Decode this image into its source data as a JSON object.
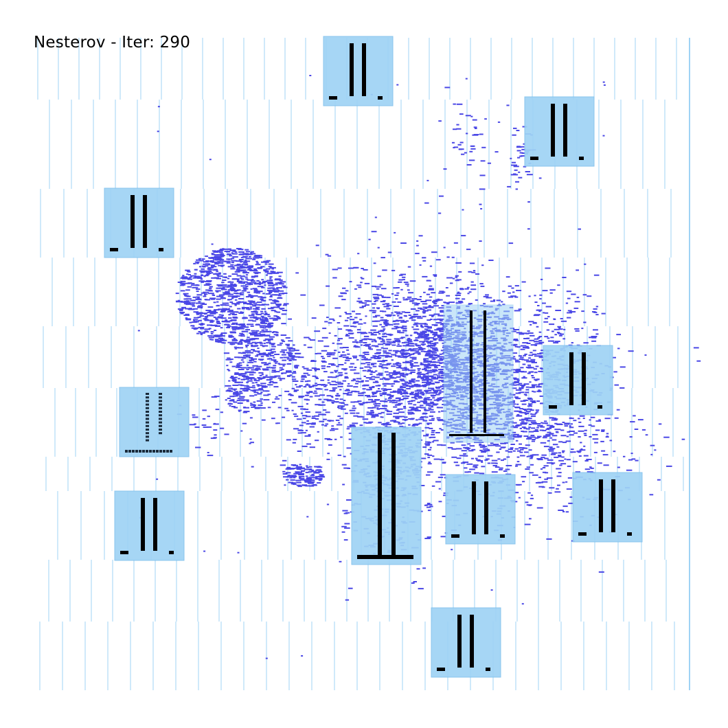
{
  "title": "Nesterov - Iter: 290",
  "colors": {
    "background": "#ffffff",
    "gridline": "#9fd3f5",
    "macro_fill": "#9fd3f5",
    "macro_edge": "#7fc0ec",
    "cell": "#4a47e6",
    "pin": "#000000"
  },
  "macros": [
    {
      "id": "macro-1",
      "style": "standard"
    },
    {
      "id": "macro-2",
      "style": "standard"
    },
    {
      "id": "macro-3",
      "style": "standard"
    },
    {
      "id": "macro-4",
      "style": "standard"
    },
    {
      "id": "macro-5",
      "style": "dashed"
    },
    {
      "id": "macro-6",
      "style": "standard"
    },
    {
      "id": "macro-7",
      "style": "tall"
    },
    {
      "id": "macro-8",
      "style": "overlapped"
    },
    {
      "id": "macro-9",
      "style": "standard"
    },
    {
      "id": "macro-10",
      "style": "standard"
    },
    {
      "id": "macro-11",
      "style": "standard"
    },
    {
      "id": "macro-12",
      "style": "standard"
    }
  ]
}
